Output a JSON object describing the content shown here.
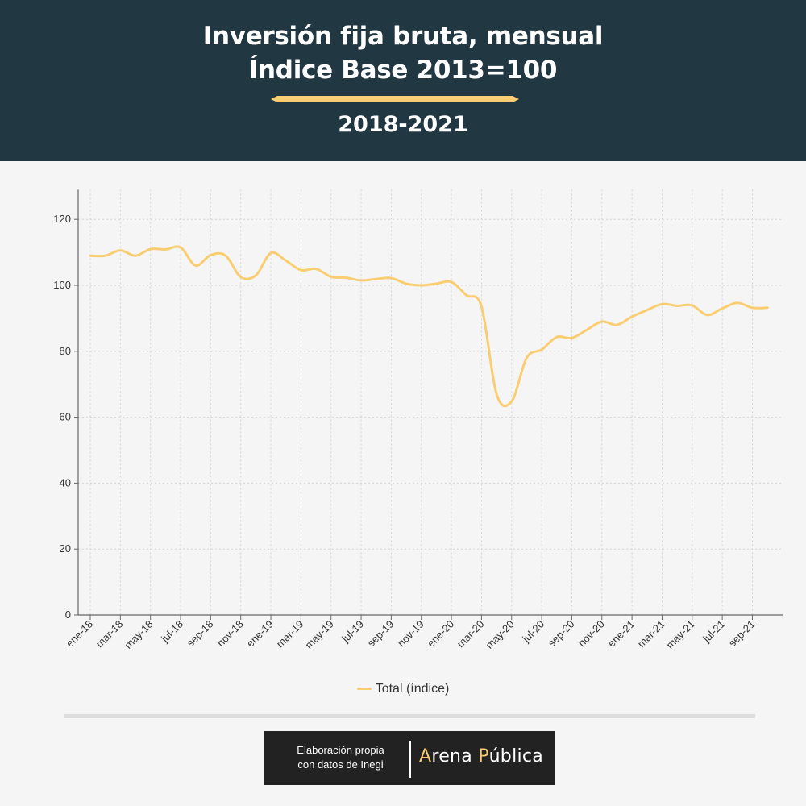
{
  "header": {
    "title_line1": "Inversión fija bruta, mensual",
    "title_line2": "Índice Base 2013=100",
    "subtitle": "2018-2021"
  },
  "legend": {
    "label": "Total (índice)"
  },
  "footer": {
    "credit_line1": "Elaboración propia",
    "credit_line2": "con datos de Inegi",
    "brand_a": "A",
    "brand_rest1": "rena ",
    "brand_p": "P",
    "brand_rest2": "ública"
  },
  "colors": {
    "header_bg": "#213742",
    "line": "#f9ce72",
    "background": "#f5f5f5",
    "grid": "#d4d4d4"
  },
  "chart_data": {
    "type": "line",
    "title": "",
    "xlabel": "",
    "ylabel": "",
    "ylim": [
      0,
      129
    ],
    "yticks": [
      0,
      20,
      40,
      60,
      80,
      100,
      120
    ],
    "grid": true,
    "legend_position": "bottom",
    "x_tick_labels": [
      "ene-18",
      "mar-18",
      "may-18",
      "jul-18",
      "sep-18",
      "nov-18",
      "ene-19",
      "mar-19",
      "may-19",
      "jul-19",
      "sep-19",
      "nov-19",
      "ene-20",
      "mar-20",
      "may-20",
      "jul-20",
      "sep-20",
      "nov-20",
      "ene-21",
      "mar-21",
      "may-21",
      "jul-21",
      "sep-21"
    ],
    "x": [
      "ene-18",
      "feb-18",
      "mar-18",
      "abr-18",
      "may-18",
      "jun-18",
      "jul-18",
      "ago-18",
      "sep-18",
      "oct-18",
      "nov-18",
      "dic-18",
      "ene-19",
      "feb-19",
      "mar-19",
      "abr-19",
      "may-19",
      "jun-19",
      "jul-19",
      "ago-19",
      "sep-19",
      "oct-19",
      "nov-19",
      "dic-19",
      "ene-20",
      "feb-20",
      "mar-20",
      "abr-20",
      "may-20",
      "jun-20",
      "jul-20",
      "ago-20",
      "sep-20",
      "oct-20",
      "nov-20",
      "dic-20",
      "ene-21",
      "feb-21",
      "mar-21",
      "abr-21",
      "may-21",
      "jun-21",
      "jul-21",
      "ago-21",
      "sep-21",
      "oct-21"
    ],
    "series": [
      {
        "name": "Total (índice)",
        "values": [
          109.0,
          109.0,
          110.6,
          109.0,
          111.0,
          110.9,
          111.5,
          106.0,
          109.2,
          109.0,
          102.5,
          103.0,
          109.8,
          107.5,
          104.6,
          105.0,
          102.6,
          102.3,
          101.5,
          101.9,
          102.2,
          100.5,
          100.0,
          100.5,
          101.0,
          97.0,
          93.5,
          67.0,
          64.8,
          78.0,
          80.5,
          84.3,
          84.0,
          86.5,
          89.0,
          88.0,
          90.5,
          92.5,
          94.3,
          93.8,
          93.9,
          91.0,
          93.0,
          94.7,
          93.2,
          93.2
        ]
      }
    ]
  }
}
